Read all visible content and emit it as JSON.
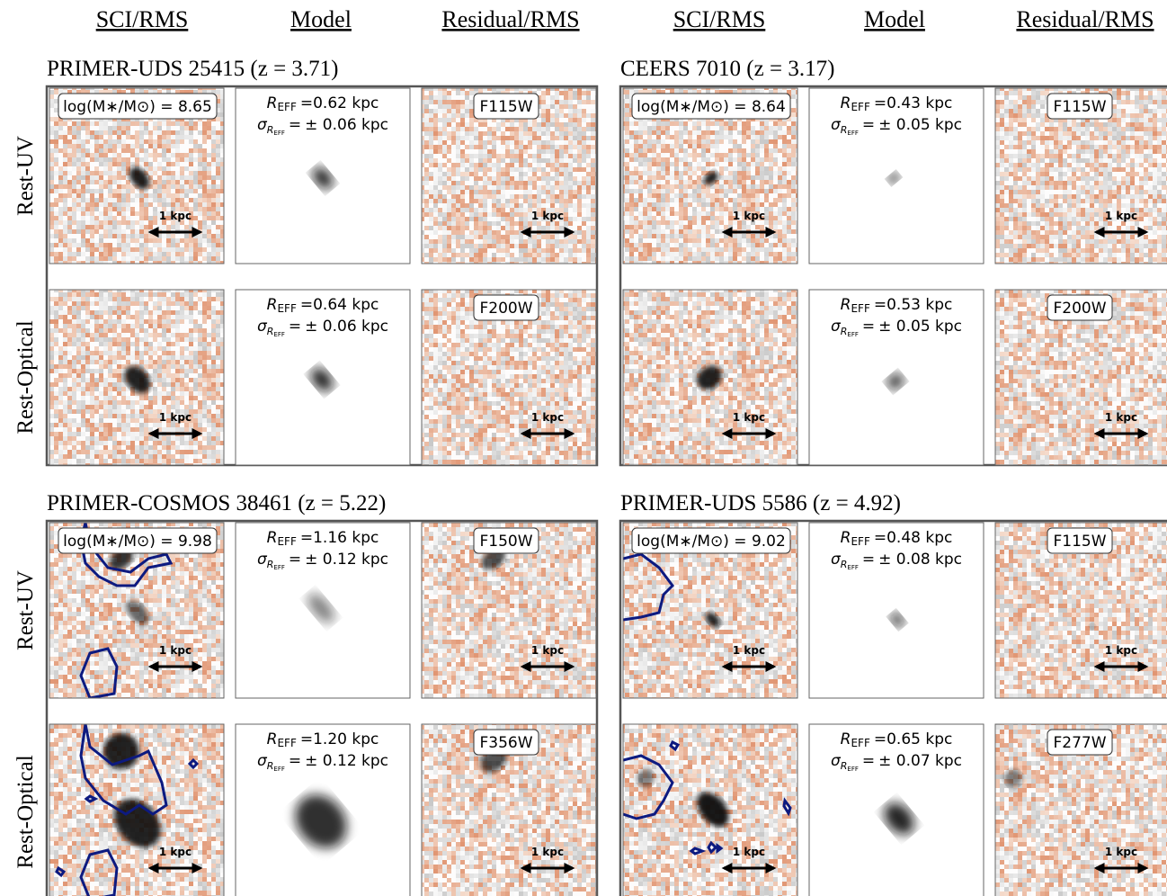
{
  "column_headers": [
    "SCI/RMS",
    "Model",
    "Residual/RMS"
  ],
  "row_labels": [
    "Rest-UV",
    "Rest-Optical"
  ],
  "scale_label": "1 kpc",
  "symbols": {
    "r": "R",
    "eff": "EFF",
    "equals": "=",
    "sigma": "σ"
  },
  "objects": [
    {
      "title": "PRIMER-UDS 25415 (z = 3.71)",
      "mass": "log(M∗/M⊙) = 8.65",
      "rows": [
        {
          "filter": "F115W",
          "reff": "0.62 kpc",
          "sigma_reff": "± 0.06 kpc"
        },
        {
          "filter": "F200W",
          "reff": "0.64 kpc",
          "sigma_reff": "± 0.06 kpc"
        }
      ]
    },
    {
      "title": "CEERS 7010 (z = 3.17)",
      "mass": "log(M∗/M⊙) = 8.64",
      "rows": [
        {
          "filter": "F115W",
          "reff": "0.43 kpc",
          "sigma_reff": "± 0.05 kpc"
        },
        {
          "filter": "F200W",
          "reff": "0.53 kpc",
          "sigma_reff": "± 0.05 kpc"
        }
      ]
    },
    {
      "title": "PRIMER-COSMOS 38461 (z = 5.22)",
      "mass": "log(M∗/M⊙) = 9.98",
      "rows": [
        {
          "filter": "F150W",
          "reff": "1.16 kpc",
          "sigma_reff": "± 0.12 kpc"
        },
        {
          "filter": "F356W",
          "reff": "1.20 kpc",
          "sigma_reff": "± 0.12 kpc"
        }
      ]
    },
    {
      "title": "PRIMER-UDS 5586 (z = 4.92)",
      "mass": "log(M∗/M⊙) = 9.02",
      "rows": [
        {
          "filter": "F115W",
          "reff": "0.48 kpc",
          "sigma_reff": "± 0.08 kpc"
        },
        {
          "filter": "F277W",
          "reff": "0.65 kpc",
          "sigma_reff": "± 0.07 kpc"
        }
      ]
    }
  ]
}
